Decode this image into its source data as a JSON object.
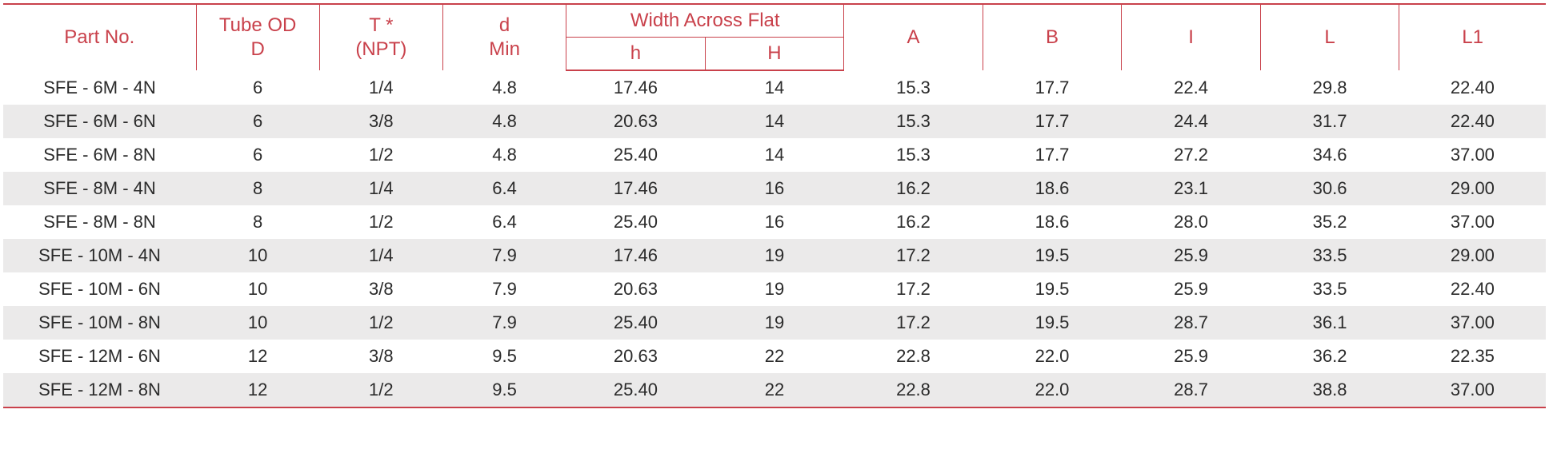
{
  "table": {
    "type": "table",
    "colors": {
      "header_text": "#c9414b",
      "border": "#c9414b",
      "body_text": "#2b2b2b",
      "row_alt_bg": "#ebeaea",
      "background": "#ffffff"
    },
    "font": {
      "header_size_pt": 18,
      "body_size_pt": 16,
      "family": "Arial, sans-serif",
      "weight": 400
    },
    "col_widths_pct": [
      12.5,
      8,
      8,
      8,
      9,
      9,
      9,
      9,
      9,
      9,
      9.5
    ],
    "columns": {
      "part_no": "Part No.",
      "tube_od_top": "Tube OD",
      "tube_od_bottom": "D",
      "t_top": "T *",
      "t_bottom": "(NPT)",
      "d_top": "d",
      "d_bottom": "Min",
      "waf": "Width Across Flat",
      "waf_h_lower": "h",
      "waf_h_upper": "H",
      "a": "A",
      "b": "B",
      "i": "I",
      "l": "L",
      "l1": "L1"
    },
    "rows": [
      [
        "SFE -   6M - 4N",
        "6",
        "1/4",
        "4.8",
        "17.46",
        "14",
        "15.3",
        "17.7",
        "22.4",
        "29.8",
        "22.40"
      ],
      [
        "SFE -   6M - 6N",
        "6",
        "3/8",
        "4.8",
        "20.63",
        "14",
        "15.3",
        "17.7",
        "24.4",
        "31.7",
        "22.40"
      ],
      [
        "SFE -   6M - 8N",
        "6",
        "1/2",
        "4.8",
        "25.40",
        "14",
        "15.3",
        "17.7",
        "27.2",
        "34.6",
        "37.00"
      ],
      [
        "SFE -   8M - 4N",
        "8",
        "1/4",
        "6.4",
        "17.46",
        "16",
        "16.2",
        "18.6",
        "23.1",
        "30.6",
        "29.00"
      ],
      [
        "SFE -   8M - 8N",
        "8",
        "1/2",
        "6.4",
        "25.40",
        "16",
        "16.2",
        "18.6",
        "28.0",
        "35.2",
        "37.00"
      ],
      [
        "SFE - 10M - 4N",
        "10",
        "1/4",
        "7.9",
        "17.46",
        "19",
        "17.2",
        "19.5",
        "25.9",
        "33.5",
        "29.00"
      ],
      [
        "SFE - 10M - 6N",
        "10",
        "3/8",
        "7.9",
        "20.63",
        "19",
        "17.2",
        "19.5",
        "25.9",
        "33.5",
        "22.40"
      ],
      [
        "SFE - 10M - 8N",
        "10",
        "1/2",
        "7.9",
        "25.40",
        "19",
        "17.2",
        "19.5",
        "28.7",
        "36.1",
        "37.00"
      ],
      [
        "SFE - 12M - 6N",
        "12",
        "3/8",
        "9.5",
        "20.63",
        "22",
        "22.8",
        "22.0",
        "25.9",
        "36.2",
        "22.35"
      ],
      [
        "SFE - 12M - 8N",
        "12",
        "1/2",
        "9.5",
        "25.40",
        "22",
        "22.8",
        "22.0",
        "28.7",
        "38.8",
        "37.00"
      ]
    ]
  }
}
